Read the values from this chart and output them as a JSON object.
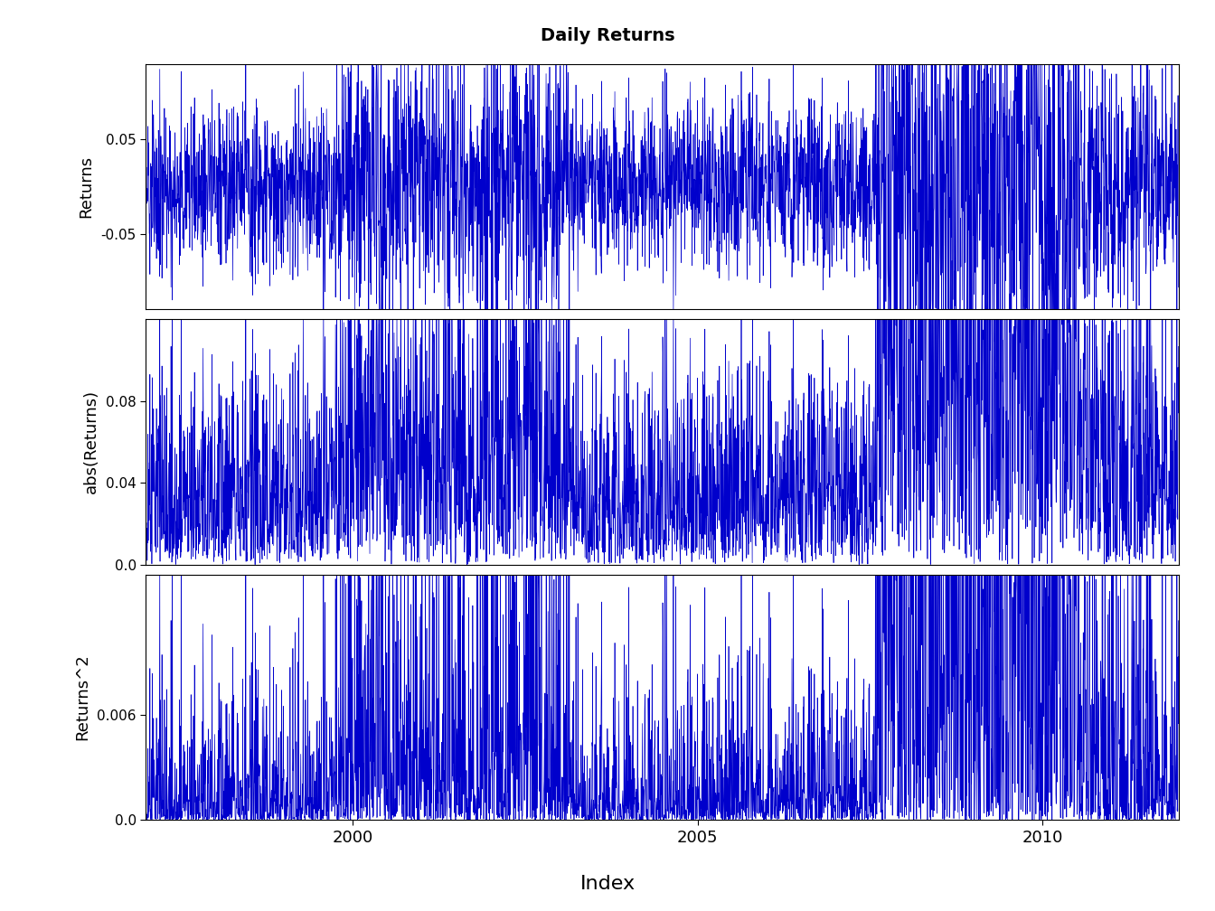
{
  "title": "Daily Returns",
  "title_fontsize": 14,
  "title_fontweight": "bold",
  "xlabel": "Index",
  "xlabel_fontsize": 16,
  "ylabel1": "Returns",
  "ylabel2": "abs(Returns)",
  "ylabel3": "Returns^2",
  "ylabel_fontsize": 13,
  "line_color": "#0000CC",
  "line_width": 0.5,
  "background_color": "#FFFFFF",
  "n_points": 3773,
  "start_year": 1997,
  "trading_days": 252,
  "ylim1": [
    -0.13,
    0.13
  ],
  "ylim2": [
    0.0,
    0.12
  ],
  "ylim3": [
    0.0,
    0.014
  ],
  "yticks1": [
    -0.05,
    0.05
  ],
  "yticks2": [
    0.0,
    0.04,
    0.08
  ],
  "yticks3": [
    0.0,
    0.006
  ],
  "xtick_positions": [
    2000,
    2005,
    2010
  ],
  "xtick_labels": [
    "2000",
    "2005",
    "2010"
  ]
}
